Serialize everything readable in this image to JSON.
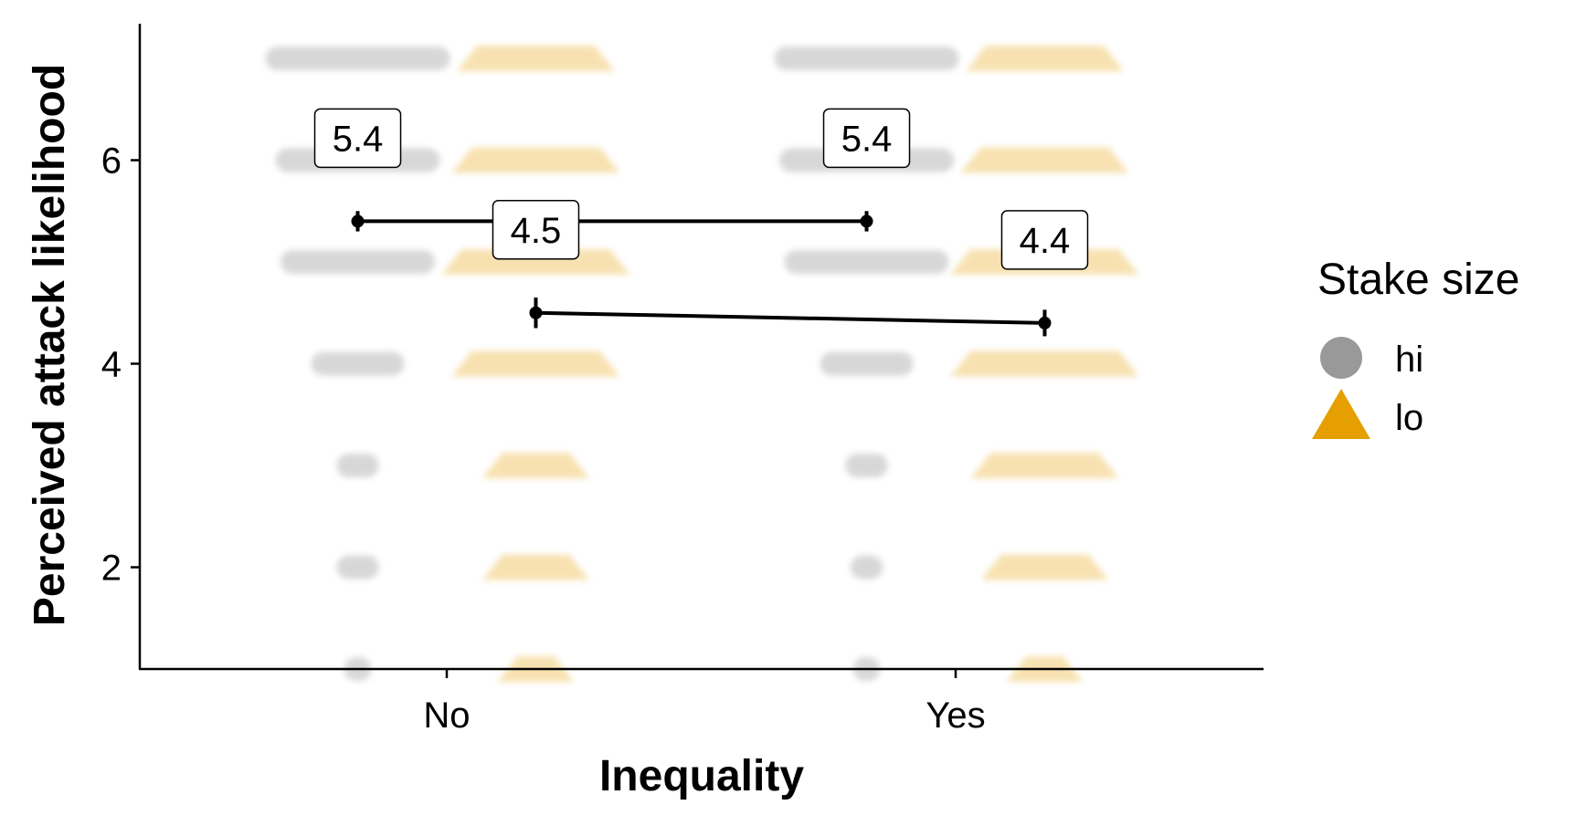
{
  "chart_data": {
    "type": "scatter",
    "title": "",
    "xlabel": "Inequality",
    "ylabel": "Perceived attack likelihood",
    "categories": [
      "No",
      "Yes"
    ],
    "y_ticks": [
      2,
      4,
      6
    ],
    "ylim": [
      1,
      7.3
    ],
    "grid": false,
    "legend": {
      "title": "Stake size",
      "position": "right",
      "items": [
        {
          "label": "hi",
          "shape": "circle",
          "color": "#999999"
        },
        {
          "label": "lo",
          "shape": "triangle",
          "color": "#E69F00"
        }
      ]
    },
    "series": [
      {
        "name": "hi",
        "color": "#999999",
        "shape": "circle",
        "offset": -0.175,
        "means": [
          5.4,
          5.4
        ],
        "errors": [
          0.1,
          0.1
        ],
        "labels": [
          "5.4",
          "5.4"
        ],
        "distribution": [
          {
            "y": 7,
            "spread": [
              0.32,
              0.32
            ]
          },
          {
            "y": 6,
            "spread": [
              0.28,
              0.3
            ]
          },
          {
            "y": 5,
            "spread": [
              0.26,
              0.28
            ]
          },
          {
            "y": 4,
            "spread": [
              0.14,
              0.14
            ]
          },
          {
            "y": 3,
            "spread": [
              0.04,
              0.04
            ]
          },
          {
            "y": 2,
            "spread": [
              0.04,
              0.02
            ]
          },
          {
            "y": 1,
            "spread": [
              0.01,
              0.01
            ]
          }
        ]
      },
      {
        "name": "lo",
        "color": "#E69F00",
        "shape": "triangle",
        "offset": 0.175,
        "means": [
          4.5,
          4.4
        ],
        "errors": [
          0.15,
          0.13
        ],
        "labels": [
          "4.5",
          "4.4"
        ],
        "distribution": [
          {
            "y": 7,
            "spread": [
              0.26,
              0.26
            ]
          },
          {
            "y": 6,
            "spread": [
              0.28,
              0.28
            ]
          },
          {
            "y": 5,
            "spread": [
              0.32,
              0.32
            ]
          },
          {
            "y": 4,
            "spread": [
              0.28,
              0.32
            ]
          },
          {
            "y": 3,
            "spread": [
              0.16,
              0.24
            ]
          },
          {
            "y": 2,
            "spread": [
              0.16,
              0.2
            ]
          },
          {
            "y": 1,
            "spread": [
              0.1,
              0.1
            ]
          }
        ]
      }
    ]
  }
}
